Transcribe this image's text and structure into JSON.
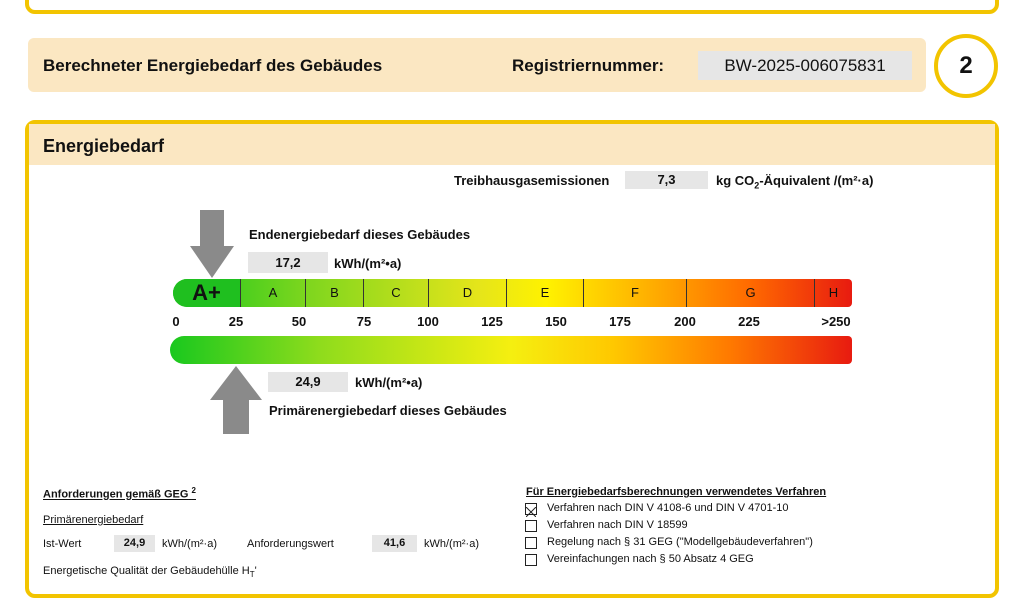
{
  "header": {
    "title": "Berechneter Energiebedarf des Gebäudes",
    "reg_label": "Registriernummer:",
    "reg_number": "BW-2025-006075831",
    "page": "2"
  },
  "section": {
    "title": "Energiebedarf",
    "emissions": {
      "label": "Treibhausgasemissionen",
      "value": "7,3",
      "unit_pre": "kg CO",
      "unit_sub": "2",
      "unit_post": "-Äquivalent /(m²·a)"
    },
    "end_energy": {
      "label": "Endenergiebedarf dieses Gebäudes",
      "value": "17,2",
      "unit": "kWh/(m²•a)"
    },
    "primary_energy": {
      "label": "Primärenergiebedarf dieses Gebäudes",
      "value": "24,9",
      "unit": "kWh/(m²•a)"
    },
    "scale": {
      "classes": [
        "A+",
        "A",
        "B",
        "C",
        "D",
        "E",
        "F",
        "G",
        "H"
      ],
      "ticks": [
        "0",
        "25",
        "50",
        "75",
        "100",
        "125",
        "150",
        "175",
        "200",
        "225",
        ">250"
      ]
    }
  },
  "requirements": {
    "title": "Anforderungen gemäß GEG",
    "title_sup": "2",
    "subtitle": "Primärenergiebedarf",
    "actual_label": "Ist-Wert",
    "actual_value": "24,9",
    "actual_unit": "kWh/(m²·a)",
    "required_label": "Anforderungswert",
    "required_value": "41,6",
    "required_unit": "kWh/(m²·a)",
    "envelope_label": "Energetische Qualität der Gebäudehülle H",
    "envelope_sub": "T",
    "envelope_post": "'"
  },
  "procedure": {
    "title": "Für Energiebedarfsberechnungen verwendetes Verfahren",
    "options": [
      {
        "label": "Verfahren nach DIN V 4108-6 und DIN V 4701-10",
        "checked": true
      },
      {
        "label": "Verfahren nach DIN V 18599",
        "checked": false
      },
      {
        "label": "Regelung nach § 31 GEG (\"Modellgebäudeverfahren\")",
        "checked": false
      },
      {
        "label": "Vereinfachungen nach § 50 Absatz 4 GEG",
        "checked": false
      }
    ]
  }
}
